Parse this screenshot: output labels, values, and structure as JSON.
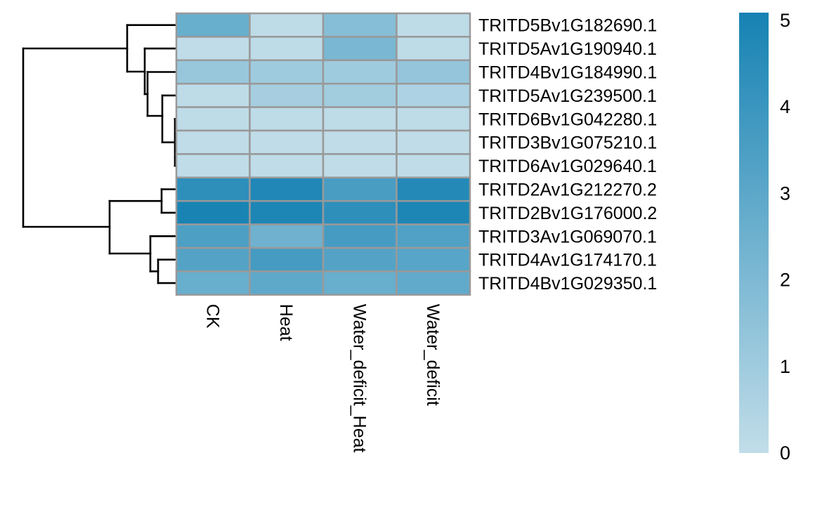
{
  "chart_data": {
    "type": "heatmap",
    "title": "",
    "columns": [
      "CK",
      "Heat",
      "Water_deficit_Heat",
      "Water_deficit"
    ],
    "rows": [
      "TRITD5Bv1G182690.1",
      "TRITD5Av1G190940.1",
      "TRITD4Bv1G184990.1",
      "TRITD5Av1G239500.1",
      "TRITD6Bv1G042280.1",
      "TRITD3Bv1G075210.1",
      "TRITD6Av1G029640.1",
      "TRITD2Av1G212270.2",
      "TRITD2Bv1G176000.2",
      "TRITD3Av1G069070.1",
      "TRITD4Av1G174170.1",
      "TRITD4Bv1G029350.1"
    ],
    "values": [
      [
        2.6,
        0.1,
        1.7,
        0.1
      ],
      [
        0.05,
        0.1,
        2.1,
        0.1
      ],
      [
        1.2,
        1.0,
        1.0,
        1.3
      ],
      [
        0.1,
        0.8,
        0.9,
        0.6
      ],
      [
        0.1,
        0.1,
        0.1,
        0.1
      ],
      [
        0.05,
        0.05,
        0.05,
        0.05
      ],
      [
        0.05,
        0.05,
        0.05,
        0.05
      ],
      [
        4.3,
        4.7,
        3.5,
        4.6
      ],
      [
        4.9,
        4.8,
        4.3,
        4.8
      ],
      [
        3.4,
        2.4,
        3.6,
        3.3
      ],
      [
        3.2,
        3.6,
        3.2,
        3.1
      ],
      [
        2.6,
        2.9,
        2.6,
        2.8
      ]
    ],
    "color_scale": {
      "min": 0,
      "max": 5,
      "low_color": "#c1dde9",
      "high_color": "#1682b3"
    },
    "legend": {
      "position": "right",
      "ticks": [
        "0",
        "1",
        "2",
        "3",
        "4",
        "5"
      ]
    },
    "cell_border_color": "#999999",
    "row_dendrogram": true
  }
}
